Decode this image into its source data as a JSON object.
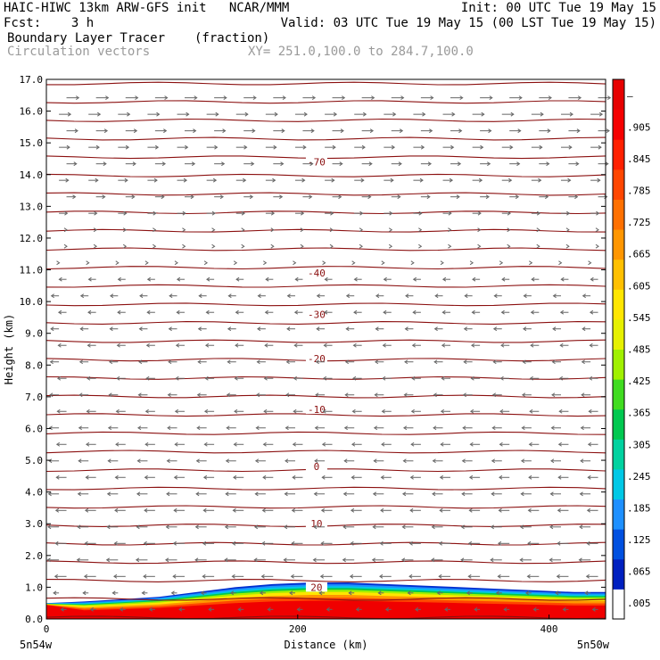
{
  "header": {
    "line1_left": "HAIC-HIWC 13km ARW-GFS init   NCAR/MMM",
    "line1_right": "Init: 00 UTC Tue 19 May 15",
    "line2_left": "Fcst:    3 h",
    "line2_right": "Valid: 03 UTC Tue 19 May 15 (00 LST Tue 19 May 15)",
    "line3_left": "Boundary Layer Tracer",
    "line3_mid": "(fraction)",
    "line4_left": "Circulation vectors",
    "line4_mid": "XY= 251.0,100.0 to 284.7,100.0"
  },
  "chart_data": {
    "type": "heatmap",
    "xlabel": "Distance (km)",
    "ylabel": "Height (km)",
    "xlim": [
      0,
      445
    ],
    "ylim": [
      0,
      17
    ],
    "x_ticks": [
      "0",
      "200",
      "400"
    ],
    "x_end_labels": [
      "5n54w",
      "5n50w"
    ],
    "y_ticks": [
      "0.0",
      "1.0",
      "2.0",
      "3.0",
      "4.0",
      "5.0",
      "6.0",
      "7.0",
      "8.0",
      "9.0",
      "10.0",
      "11.0",
      "12.0",
      "13.0",
      "14.0",
      "15.0",
      "16.0",
      "17.0"
    ],
    "colorbar": {
      "labels": [
        ".005",
        ".065",
        ".125",
        ".185",
        ".245",
        ".305",
        ".365",
        ".425",
        ".485",
        ".545",
        ".605",
        ".665",
        ".725",
        ".785",
        ".845",
        ".905",
        "–"
      ],
      "colors": [
        "#ffffff",
        "#0020c0",
        "#0050e0",
        "#1e90ff",
        "#00c8e6",
        "#00d2a0",
        "#00c850",
        "#40dc20",
        "#a0f000",
        "#e6f000",
        "#ffe600",
        "#ffc000",
        "#ff9600",
        "#ff7000",
        "#ff4600",
        "#ff2000",
        "#f50000",
        "#e60000"
      ]
    },
    "temperature_contours": {
      "labels": [
        "-70",
        "-40",
        "-30",
        "-20",
        "-10",
        "0",
        "10",
        "20"
      ],
      "label_heights_km": [
        14.4,
        10.9,
        9.6,
        8.2,
        6.6,
        4.8,
        3.0,
        1.0
      ],
      "line_color": "#8b1010"
    },
    "tracer_top_km": [
      0.5,
      0.55,
      0.62,
      0.7,
      0.85,
      1.0,
      1.1,
      1.15,
      1.15,
      1.1,
      1.05,
      1.0,
      0.95,
      0.9,
      0.85,
      0.85
    ],
    "tracer_x_km": [
      0,
      30,
      60,
      90,
      120,
      150,
      180,
      210,
      240,
      270,
      300,
      330,
      360,
      390,
      420,
      445
    ],
    "vector_color": "#666666"
  }
}
